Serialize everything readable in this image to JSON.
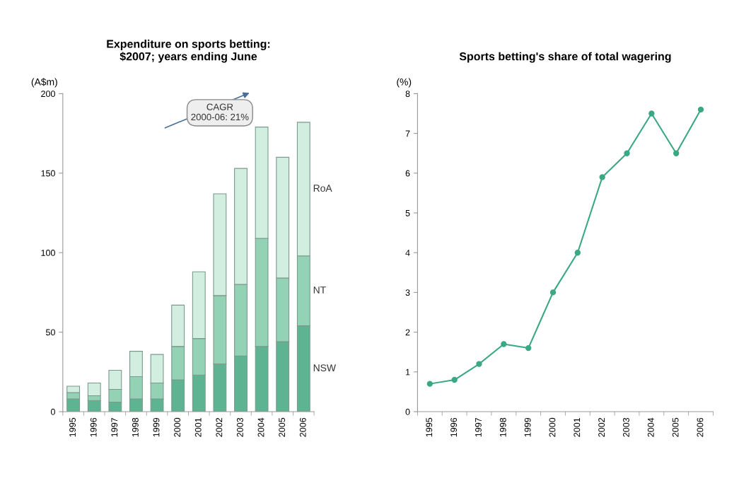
{
  "chart_data": [
    {
      "type": "bar",
      "stacked": true,
      "title": "Expenditure on sports betting:\n$2007; years ending June",
      "ylabel": "(A$m)",
      "categories": [
        "1995",
        "1996",
        "1997",
        "1998",
        "1999",
        "2000",
        "2001",
        "2002",
        "2003",
        "2004",
        "2005",
        "2006"
      ],
      "series": [
        {
          "name": "NSW",
          "color": "#5eb492",
          "values": [
            8,
            7,
            6,
            8,
            8,
            20,
            23,
            30,
            35,
            41,
            44,
            54
          ]
        },
        {
          "name": "NT",
          "color": "#94d2b6",
          "values": [
            4,
            3,
            8,
            14,
            10,
            21,
            23,
            43,
            45,
            68,
            40,
            44
          ]
        },
        {
          "name": "RoA",
          "color": "#d2eee1",
          "values": [
            4,
            8,
            12,
            16,
            18,
            26,
            42,
            64,
            73,
            70,
            76,
            84
          ]
        }
      ],
      "ylim": [
        0,
        200
      ],
      "yticks": [
        0,
        50,
        100,
        150,
        200
      ],
      "grid": false,
      "legend": false,
      "annotations": [
        "CAGR\n2000-06: 21%"
      ]
    },
    {
      "type": "line",
      "title": "Sports betting's share of total wagering",
      "ylabel": "(%)",
      "categories": [
        "1995",
        "1996",
        "1997",
        "1998",
        "1999",
        "2000",
        "2001",
        "2002",
        "2003",
        "2004",
        "2005",
        "2006"
      ],
      "series": [
        {
          "color": "#3aa882",
          "values": [
            0.7,
            0.8,
            1.2,
            1.7,
            1.6,
            3.0,
            4.0,
            5.9,
            6.5,
            7.5,
            6.5,
            7.6
          ]
        }
      ],
      "ylim": [
        0,
        8
      ],
      "yticks": [
        0,
        1,
        2,
        3,
        4,
        5,
        6,
        7,
        8
      ],
      "grid": false,
      "legend": false,
      "marker": "circle",
      "line_style": "solid"
    }
  ]
}
